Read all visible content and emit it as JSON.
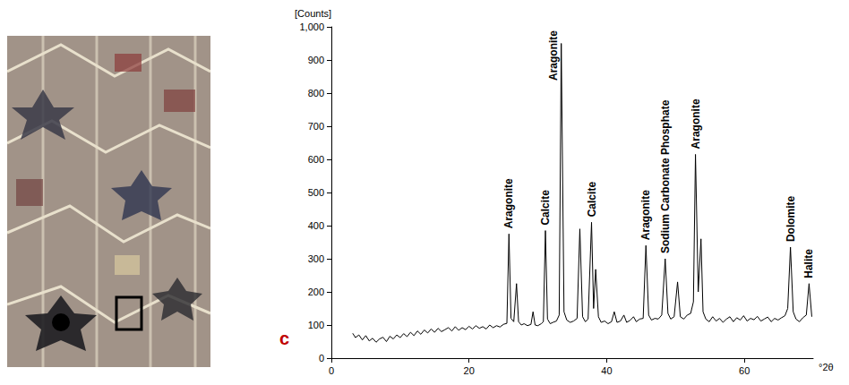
{
  "chart_data": {
    "type": "line",
    "panel_label": "c",
    "x_label": "°2θ",
    "y_label": "[Counts]",
    "color": "#000000",
    "grid": false,
    "xlim": [
      0,
      70
    ],
    "xticks": [
      0,
      20,
      40,
      60
    ],
    "ylim": [
      0,
      1000
    ],
    "yticks": [
      0,
      100,
      200,
      300,
      400,
      500,
      600,
      700,
      800,
      900,
      1000
    ],
    "x": [
      3.1,
      3.5,
      4,
      4.5,
      5,
      5.5,
      6,
      6.5,
      7,
      7.5,
      8,
      8.5,
      9,
      9.5,
      10,
      10.5,
      11,
      11.5,
      12,
      12.5,
      13,
      13.5,
      14,
      14.5,
      15,
      15.5,
      16,
      16.5,
      17,
      17.5,
      18,
      18.5,
      19,
      19.5,
      20,
      20.5,
      21,
      21.5,
      22,
      22.5,
      23,
      23.5,
      24,
      24.5,
      25,
      25.5,
      25.8,
      26.1,
      26.5,
      26.9,
      27.2,
      27.6,
      28,
      28.5,
      29,
      29.3,
      29.6,
      30,
      30.5,
      30.8,
      31.1,
      31.4,
      31.8,
      32.2,
      32.7,
      33.1,
      33.4,
      33.8,
      34.2,
      34.7,
      35.2,
      35.7,
      36.1,
      36.5,
      36.9,
      37.3,
      37.8,
      38.1,
      38.4,
      38.8,
      39.2,
      39.7,
      40.2,
      40.7,
      41.1,
      41.5,
      42,
      42.5,
      42.9,
      43.4,
      43.9,
      44.3,
      44.8,
      45.3,
      45.7,
      46.1,
      46.5,
      47,
      47.5,
      48,
      48.5,
      48.9,
      49.3,
      49.8,
      50.3,
      50.7,
      51.2,
      51.7,
      52.2,
      52.6,
      52.9,
      53.3,
      53.7,
      54,
      54.4,
      54.9,
      55.4,
      55.9,
      56.4,
      56.9,
      57.4,
      57.9,
      58.4,
      58.9,
      59.4,
      59.9,
      60.4,
      60.9,
      61.4,
      61.9,
      62.4,
      62.9,
      63.4,
      63.9,
      64.4,
      64.9,
      65.4,
      65.9,
      66.3,
      66.7,
      67.1,
      67.5,
      68,
      68.5,
      69,
      69.4,
      69.8
    ],
    "values": [
      75,
      62,
      70,
      55,
      68,
      52,
      60,
      48,
      58,
      63,
      50,
      66,
      58,
      70,
      62,
      74,
      65,
      78,
      68,
      82,
      72,
      85,
      76,
      88,
      78,
      90,
      80,
      86,
      92,
      82,
      95,
      84,
      92,
      86,
      96,
      88,
      98,
      90,
      95,
      88,
      100,
      92,
      98,
      94,
      102,
      105,
      375,
      120,
      110,
      225,
      110,
      100,
      104,
      98,
      102,
      140,
      100,
      98,
      104,
      110,
      385,
      118,
      104,
      108,
      112,
      130,
      950,
      140,
      115,
      108,
      112,
      120,
      390,
      125,
      110,
      118,
      410,
      150,
      268,
      125,
      108,
      112,
      104,
      110,
      140,
      108,
      112,
      130,
      108,
      114,
      125,
      110,
      118,
      120,
      340,
      130,
      115,
      120,
      118,
      130,
      300,
      135,
      118,
      125,
      230,
      125,
      118,
      130,
      135,
      170,
      615,
      200,
      360,
      140,
      118,
      110,
      125,
      112,
      120,
      108,
      118,
      125,
      110,
      122,
      115,
      128,
      112,
      120,
      116,
      126,
      112,
      118,
      124,
      110,
      120,
      115,
      122,
      128,
      150,
      335,
      140,
      118,
      110,
      122,
      130,
      225,
      125
    ],
    "annotations": [
      {
        "text": "Aragonite",
        "x": 25.8
      },
      {
        "text": "Calcite",
        "x": 31.1
      },
      {
        "text": "Aragonite",
        "x": 33.4
      },
      {
        "text": "Calcite",
        "x": 37.8
      },
      {
        "text": "Aragonite",
        "x": 45.7
      },
      {
        "text": "Sodium Carbonate Phosphate",
        "x": 48.5
      },
      {
        "text": "Aragonite",
        "x": 52.9
      },
      {
        "text": "Dolomite",
        "x": 66.7
      },
      {
        "text": "Halite",
        "x": 69.4
      }
    ]
  }
}
